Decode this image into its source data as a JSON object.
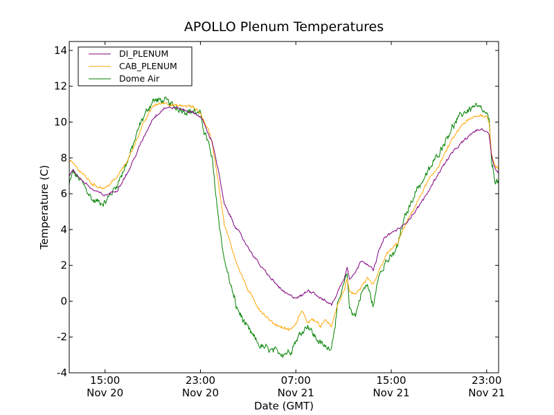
{
  "chart_data": {
    "type": "line",
    "title": "APOLLO Plenum Temperatures",
    "xlabel": "Date (GMT)",
    "ylabel": "Temperature (C)",
    "x_unit": "hours since Nov 20 12:00 GMT",
    "xlim": [
      0,
      36
    ],
    "ylim": [
      -4,
      14.5
    ],
    "yticks": [
      -4,
      -2,
      0,
      2,
      4,
      6,
      8,
      10,
      12,
      14
    ],
    "xticks": [
      {
        "value": 3,
        "time": "15:00",
        "date": "Nov 20"
      },
      {
        "value": 11,
        "time": "23:00",
        "date": "Nov 20"
      },
      {
        "value": 19,
        "time": "07:00",
        "date": "Nov 21"
      },
      {
        "value": 27,
        "time": "15:00",
        "date": "Nov 21"
      },
      {
        "value": 35,
        "time": "23:00",
        "date": "Nov 21"
      }
    ],
    "legend_position": "top-left",
    "series": [
      {
        "name": "DI_PLENUM",
        "color": "#800080",
        "noise": 0.05,
        "x": [
          0,
          0.3,
          1,
          2,
          3,
          4,
          5,
          6,
          7,
          8,
          9,
          10,
          10.5,
          11,
          11.4,
          11.6,
          12,
          12.5,
          13,
          14,
          15,
          16,
          17,
          18,
          18.5,
          19,
          19.5,
          20,
          20.5,
          21,
          21.5,
          22,
          22.5,
          23,
          23.3,
          23.5,
          24,
          24.5,
          25,
          25.5,
          26,
          26.5,
          27,
          27.5,
          28,
          29,
          30,
          31,
          32,
          33,
          34,
          34.5,
          35,
          35.2,
          35.4,
          35.7,
          36
        ],
        "y": [
          7.0,
          7.3,
          6.8,
          6.2,
          5.9,
          6.2,
          7.3,
          8.8,
          10.2,
          10.8,
          10.8,
          10.6,
          10.5,
          10.3,
          9.8,
          9.4,
          8.9,
          7.3,
          5.4,
          4.1,
          3.0,
          2.0,
          1.2,
          0.5,
          0.3,
          0.2,
          0.3,
          0.6,
          0.5,
          0.2,
          0.0,
          -0.2,
          0.5,
          1.2,
          1.9,
          1.3,
          1.6,
          2.3,
          2.1,
          1.7,
          2.9,
          3.6,
          3.8,
          4.0,
          4.2,
          5.0,
          6.0,
          7.2,
          8.2,
          8.9,
          9.5,
          9.6,
          9.5,
          9.3,
          8.2,
          7.4,
          7.2
        ]
      },
      {
        "name": "CAB_PLENUM",
        "color": "#ffa500",
        "noise": 0.06,
        "x": [
          0,
          0.3,
          1,
          2,
          3,
          4,
          5,
          6,
          7,
          8,
          9,
          10,
          10.5,
          11,
          11.4,
          11.6,
          12,
          12.5,
          13,
          14,
          15,
          16,
          17,
          18,
          18.5,
          19,
          19.5,
          20,
          20.5,
          21,
          21.5,
          22,
          22.5,
          23,
          23.3,
          23.5,
          24,
          24.5,
          25,
          25.5,
          26,
          26.5,
          27,
          27.5,
          28,
          29,
          30,
          31,
          32,
          33,
          34,
          34.5,
          35,
          35.2,
          35.4,
          35.7,
          36
        ],
        "y": [
          7.8,
          7.7,
          7.2,
          6.5,
          6.3,
          6.9,
          8.0,
          9.6,
          10.9,
          11.1,
          10.9,
          10.9,
          10.8,
          10.5,
          9.9,
          9.7,
          8.8,
          6.7,
          4.3,
          2.2,
          0.6,
          -0.5,
          -1.2,
          -1.5,
          -1.6,
          -1.3,
          -0.5,
          -1.2,
          -1.0,
          -1.4,
          -1.1,
          -1.4,
          -0.2,
          0.5,
          1.2,
          0.6,
          0.4,
          0.8,
          1.2,
          0.9,
          1.7,
          2.5,
          2.9,
          3.2,
          4.0,
          5.3,
          6.6,
          7.6,
          8.9,
          9.9,
          10.3,
          10.4,
          10.3,
          10.0,
          8.3,
          7.6,
          7.4
        ]
      },
      {
        "name": "Dome Air",
        "color": "#008000",
        "noise": 0.14,
        "x": [
          0,
          0.3,
          1,
          2,
          3,
          4,
          5,
          6,
          7,
          8,
          9,
          10,
          10.5,
          11,
          11.4,
          11.6,
          12,
          12.5,
          13,
          14,
          15,
          16,
          17,
          18,
          18.5,
          19,
          19.5,
          20,
          20.5,
          21,
          21.5,
          22,
          22.5,
          23,
          23.3,
          23.5,
          24,
          24.5,
          25,
          25.5,
          26,
          26.5,
          27,
          27.5,
          28,
          29,
          30,
          31,
          32,
          33,
          34,
          34.5,
          35,
          35.2,
          35.4,
          35.7,
          36
        ],
        "y": [
          6.5,
          7.2,
          6.7,
          5.6,
          5.5,
          6.5,
          8.0,
          10.0,
          11.2,
          11.2,
          10.8,
          10.6,
          10.6,
          10.4,
          9.3,
          9.0,
          7.8,
          4.7,
          2.3,
          -0.3,
          -1.6,
          -2.5,
          -2.8,
          -2.9,
          -2.8,
          -2.2,
          -1.7,
          -1.3,
          -1.9,
          -2.3,
          -2.6,
          -2.5,
          -0.3,
          0.8,
          1.6,
          -0.4,
          -0.8,
          0.5,
          0.9,
          -0.3,
          1.6,
          2.2,
          2.4,
          3.0,
          4.4,
          6.1,
          7.1,
          8.3,
          9.6,
          10.5,
          10.9,
          10.7,
          10.4,
          10.1,
          7.8,
          6.8,
          6.6
        ]
      }
    ]
  }
}
